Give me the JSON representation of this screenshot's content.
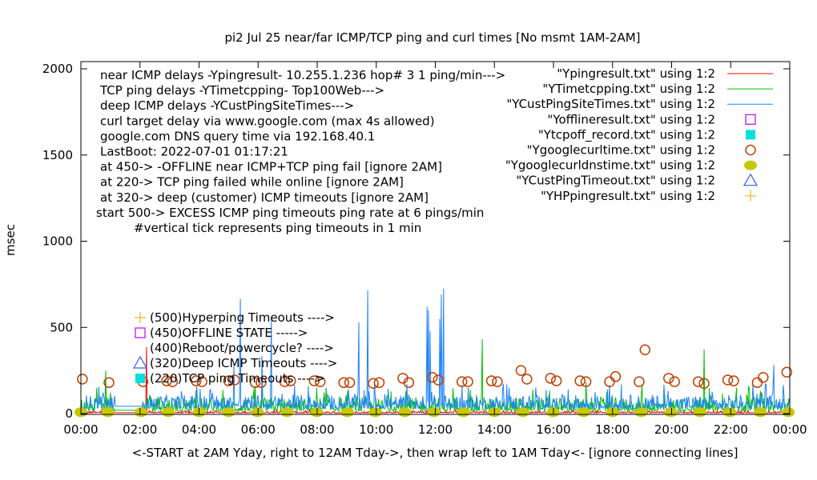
{
  "chart_data": {
    "type": "line",
    "title": "pi2 Jul 25  near/far ICMP/TCP ping and curl times [No msmt 1AM-2AM]",
    "xlabel": "<-START at 2AM Yday, right to 12AM Tday->, then wrap left to 1AM Tday<- [ignore connecting lines]",
    "ylabel": "msec",
    "xlim": [
      0,
      24
    ],
    "ylim": [
      0,
      2000
    ],
    "yticks": [
      0,
      500,
      1000,
      1500,
      2000
    ],
    "ytick_labels": [
      "0",
      "500",
      "1000",
      "1500",
      "2000"
    ],
    "xtick_labels": [
      "00:00",
      "02:00",
      "04:00",
      "06:00",
      "08:00",
      "10:00",
      "12:00",
      "14:00",
      "16:00",
      "18:00",
      "20:00",
      "22:00",
      "00:00"
    ],
    "grid": false,
    "legend_placement": "top-right",
    "annotations": [
      "near ICMP delays -Ypingresult- 10.255.1.236 hop# 3 1 ping/min--->",
      "TCP ping delays -YTimetcpping- Top100Web--->",
      "deep ICMP delays -YCustPingSiteTimes--->",
      "curl target delay via www.google.com (max 4s allowed)",
      "google.com DNS query time via 192.168.40.1",
      "LastBoot: 2022-07-01 01:17:21",
      "at 450-> -OFFLINE near ICMP+TCP ping fail [ignore 2AM]",
      "at 220-> TCP ping failed while online [ignore 2AM]",
      "at 320-> deep (customer) ICMP timeouts [ignore 2AM]",
      "start 500-> EXCESS ICMP ping timeouts ping rate at 6 pings/min",
      "#vertical tick represents ping timeouts in 1 min"
    ],
    "marker_key": [
      {
        "label": "(500)Hyperping Timeouts ---->",
        "marker": "plus",
        "color": "#ffb020"
      },
      {
        "label": "(450)OFFLINE STATE ----->",
        "marker": "open-square",
        "color": "#c000ff"
      },
      {
        "label": "(400)Reboot/powercycle? ---->",
        "marker": "none",
        "color": "#000000"
      },
      {
        "label": "(320)Deep ICMP Timeouts ---->",
        "marker": "open-triangle",
        "color": "#3060e0"
      },
      {
        "label": "(220)TCP ping Timeouts ---->",
        "marker": "filled-square",
        "color": "#00e0e0"
      }
    ],
    "series": [
      {
        "name": "\"Ypingresult.txt\" using 1:2",
        "style": "line",
        "color": "#ff0000",
        "baseline": [
          3,
          15
        ],
        "gap": [
          1.15,
          2.1
        ],
        "gap_level": 5,
        "spikes": [
          [
            2.22,
            385
          ]
        ]
      },
      {
        "name": "\"YTimetcpping.txt\" using 1:2",
        "style": "line",
        "color": "#00c000",
        "baseline": [
          15,
          95
        ],
        "gap": [
          1.15,
          2.1
        ],
        "gap_level": 20,
        "spikes": [
          [
            0.84,
            250
          ],
          [
            13.59,
            432
          ],
          [
            21.1,
            372
          ],
          [
            17.1,
            180
          ],
          [
            19.0,
            170
          ],
          [
            5.9,
            160
          ],
          [
            8.3,
            150
          ],
          [
            15.3,
            140
          ],
          [
            11.0,
            130
          ],
          [
            22.6,
            160
          ],
          [
            22.2,
            150
          ]
        ]
      },
      {
        "name": "\"YCustPingSiteTimes.txt\" using 1:2",
        "style": "line",
        "color": "#1e82ff",
        "baseline": [
          30,
          110
        ],
        "gap": [
          1.15,
          2.1
        ],
        "gap_level": 42,
        "spikes": [
          [
            5.18,
            290
          ],
          [
            5.4,
            665
          ],
          [
            6.13,
            335
          ],
          [
            6.45,
            558
          ],
          [
            9.41,
            530
          ],
          [
            9.71,
            716
          ],
          [
            11.72,
            620
          ],
          [
            11.77,
            600
          ],
          [
            11.82,
            480
          ],
          [
            12.15,
            550
          ],
          [
            12.28,
            725
          ],
          [
            12.2,
            690
          ],
          [
            23.46,
            283
          ],
          [
            23.2,
            170
          ],
          [
            18.3,
            170
          ],
          [
            16.5,
            140
          ],
          [
            14.5,
            150
          ],
          [
            7.7,
            160
          ],
          [
            10.4,
            145
          ],
          [
            3.4,
            130
          ]
        ]
      },
      {
        "name": "\"Yofflineresult.txt\" using 1:2",
        "style": "marker",
        "marker": "open-square",
        "color": "#c000ff",
        "points": []
      },
      {
        "name": "\"Ytcpoff_record.txt\" using 1:2",
        "style": "marker",
        "marker": "filled-square",
        "color": "#00e0e0",
        "points": []
      },
      {
        "name": "\"Ygooglecurltime.txt\" using 1:2",
        "style": "marker",
        "marker": "open-circle",
        "color": "#c04000",
        "points": [
          [
            0.05,
            200
          ],
          [
            0.95,
            180
          ],
          [
            2.1,
            185
          ],
          [
            2.9,
            190
          ],
          [
            3.1,
            185
          ],
          [
            3.9,
            190
          ],
          [
            4.1,
            185
          ],
          [
            5.0,
            190
          ],
          [
            5.2,
            195
          ],
          [
            5.9,
            180
          ],
          [
            6.1,
            180
          ],
          [
            6.9,
            185
          ],
          [
            7.1,
            190
          ],
          [
            7.9,
            190
          ],
          [
            8.1,
            185
          ],
          [
            8.9,
            180
          ],
          [
            9.1,
            180
          ],
          [
            9.9,
            175
          ],
          [
            10.1,
            180
          ],
          [
            10.9,
            205
          ],
          [
            11.1,
            180
          ],
          [
            11.9,
            210
          ],
          [
            12.1,
            195
          ],
          [
            12.9,
            185
          ],
          [
            13.1,
            185
          ],
          [
            13.9,
            190
          ],
          [
            14.1,
            185
          ],
          [
            14.9,
            250
          ],
          [
            15.1,
            200
          ],
          [
            15.9,
            205
          ],
          [
            16.1,
            190
          ],
          [
            16.9,
            190
          ],
          [
            17.1,
            185
          ],
          [
            17.9,
            185
          ],
          [
            18.1,
            215
          ],
          [
            18.9,
            185
          ],
          [
            19.1,
            370
          ],
          [
            19.9,
            205
          ],
          [
            20.1,
            185
          ],
          [
            20.9,
            185
          ],
          [
            21.1,
            175
          ],
          [
            21.9,
            195
          ],
          [
            22.1,
            190
          ],
          [
            22.9,
            180
          ],
          [
            23.1,
            210
          ],
          [
            23.9,
            240
          ]
        ]
      },
      {
        "name": "\"Ygooglecurldnstime.txt\" using 1:2",
        "style": "marker",
        "marker": "filled-circle",
        "color": "#c8c800",
        "points": [
          [
            0,
            8
          ],
          [
            0.92,
            8
          ],
          [
            2.04,
            8
          ],
          [
            2.96,
            8
          ],
          [
            4.0,
            8
          ],
          [
            5.0,
            8
          ],
          [
            5.98,
            8
          ],
          [
            6.98,
            8
          ],
          [
            7.99,
            8
          ],
          [
            9.02,
            8
          ],
          [
            9.97,
            8
          ],
          [
            10.97,
            8
          ],
          [
            11.95,
            8
          ],
          [
            12.95,
            8
          ],
          [
            14.0,
            8
          ],
          [
            14.96,
            8
          ],
          [
            15.99,
            8
          ],
          [
            17.02,
            8
          ],
          [
            18.0,
            8
          ],
          [
            18.97,
            8
          ],
          [
            19.98,
            8
          ],
          [
            20.96,
            8
          ],
          [
            21.97,
            8
          ],
          [
            23.0,
            8
          ],
          [
            23.95,
            8
          ]
        ]
      },
      {
        "name": "\"YCustPingTimeout.txt\" using 1:2",
        "style": "marker",
        "marker": "open-triangle",
        "color": "#3060e0",
        "points": []
      },
      {
        "name": "\"YHPpingresult.txt\" using 1:2",
        "style": "marker",
        "marker": "plus",
        "color": "#ffb020",
        "points": []
      }
    ]
  }
}
